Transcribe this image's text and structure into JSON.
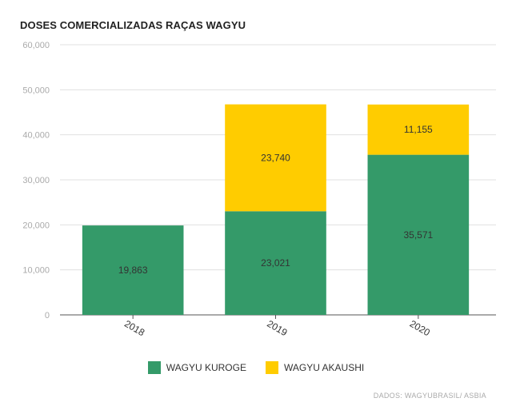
{
  "chart_data": {
    "type": "bar",
    "stacked": true,
    "title": "DOSES COMERCIALIZADAS RAÇAS WAGYU",
    "categories": [
      "2018",
      "2019",
      "2020"
    ],
    "series": [
      {
        "name": "WAGYU KUROGE",
        "color": "#349a69",
        "values": [
          19863,
          23021,
          35571
        ],
        "labels": [
          "19,863",
          "23,021",
          "35,571"
        ]
      },
      {
        "name": "WAGYU AKAUSHI",
        "color": "#ffcc00",
        "values": [
          0,
          23740,
          11155
        ],
        "labels": [
          "",
          "23,740",
          "11,155"
        ]
      }
    ],
    "yticks": [
      "0",
      "10,000",
      "20,000",
      "30,000",
      "40,000",
      "50,000",
      "60,000"
    ],
    "ylim": [
      0,
      60000
    ],
    "grid": true,
    "legend_position": "bottom-center",
    "source": "DADOS: WAGYUBRASIL/ ASBIA"
  }
}
